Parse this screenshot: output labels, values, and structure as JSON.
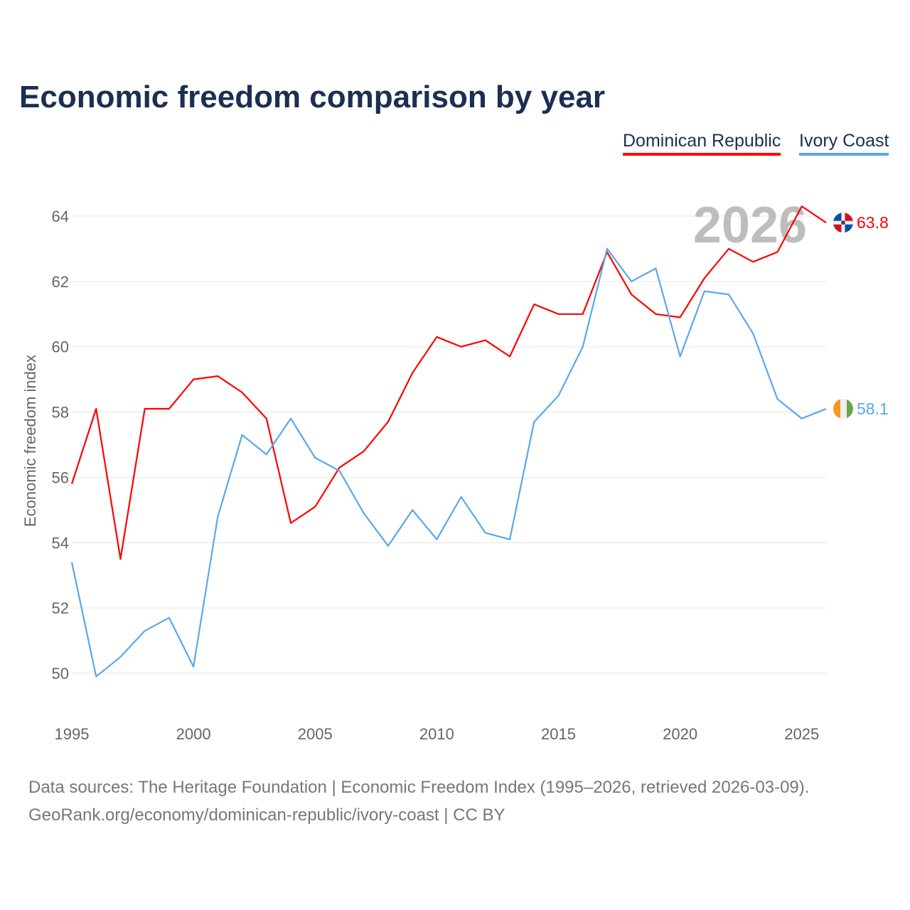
{
  "chart_data": {
    "type": "line",
    "title": "Economic freedom comparison by year",
    "xlabel": "",
    "ylabel": "Economic freedom index",
    "xlim": [
      1995,
      2026
    ],
    "ylim": [
      49,
      64.5
    ],
    "x_ticks": [
      1995,
      2000,
      2005,
      2010,
      2015,
      2020,
      2025
    ],
    "y_ticks": [
      50,
      52,
      54,
      56,
      58,
      60,
      62,
      64
    ],
    "grid": true,
    "legend_placement": "top-right",
    "watermark_year": "2026",
    "x": [
      1995,
      1996,
      1997,
      1998,
      1999,
      2000,
      2001,
      2002,
      2003,
      2004,
      2005,
      2006,
      2007,
      2008,
      2009,
      2010,
      2011,
      2012,
      2013,
      2014,
      2015,
      2016,
      2017,
      2018,
      2019,
      2020,
      2021,
      2022,
      2023,
      2024,
      2025,
      2026
    ],
    "series": [
      {
        "name": "Dominican Republic",
        "color": "#ff0000",
        "end_label": "63.8",
        "values": [
          55.8,
          58.1,
          53.5,
          58.1,
          58.1,
          59.0,
          59.1,
          58.6,
          57.8,
          54.6,
          55.1,
          56.3,
          56.8,
          57.7,
          59.2,
          60.3,
          60.0,
          60.2,
          59.7,
          61.3,
          61.0,
          61.0,
          62.9,
          61.6,
          61.0,
          60.9,
          62.1,
          63.0,
          62.6,
          62.9,
          64.3,
          63.8
        ]
      },
      {
        "name": "Ivory Coast",
        "color": "#5ba7ec",
        "end_label": "58.1",
        "values": [
          53.4,
          49.9,
          50.5,
          51.3,
          51.7,
          50.2,
          54.8,
          57.3,
          56.7,
          57.8,
          56.6,
          56.2,
          54.9,
          53.9,
          55.0,
          54.1,
          55.4,
          54.3,
          54.1,
          57.7,
          58.5,
          60.0,
          63.0,
          62.0,
          62.4,
          59.7,
          61.7,
          61.6,
          60.4,
          58.4,
          57.8,
          58.1
        ]
      }
    ]
  },
  "source": {
    "line1": "Data sources: The Heritage Foundation | Economic Freedom Index (1995–2026, retrieved 2026-03-09).",
    "line2": "GeoRank.org/economy/dominican-republic/ivory-coast | CC BY"
  }
}
